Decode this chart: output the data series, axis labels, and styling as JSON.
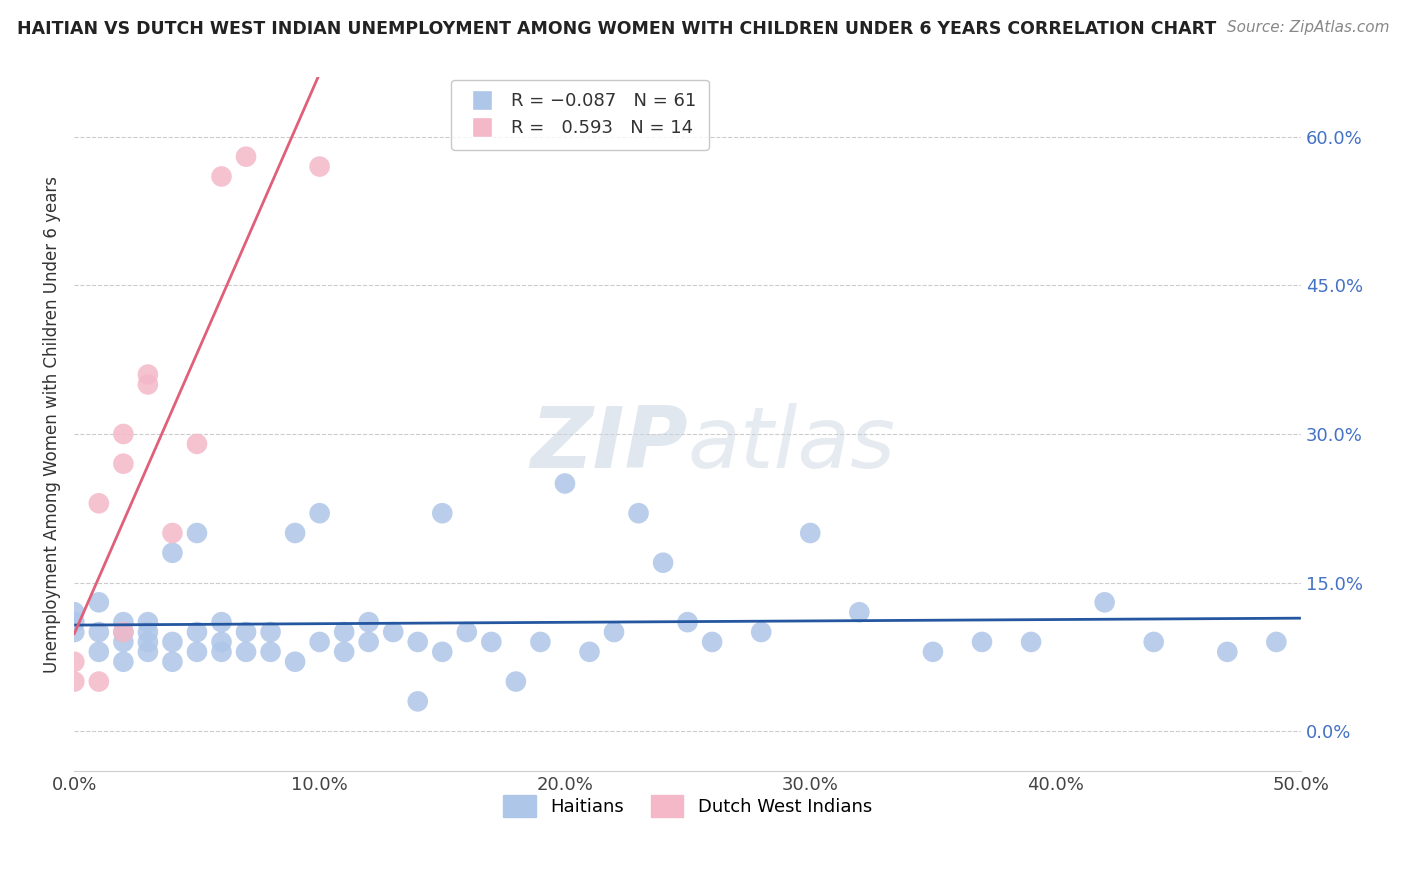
{
  "title": "HAITIAN VS DUTCH WEST INDIAN UNEMPLOYMENT AMONG WOMEN WITH CHILDREN UNDER 6 YEARS CORRELATION CHART",
  "source": "Source: ZipAtlas.com",
  "ylabel": "Unemployment Among Women with Children Under 6 years",
  "xlim": [
    0.0,
    0.5
  ],
  "ylim": [
    -0.04,
    0.66
  ],
  "xtick_labels": [
    "0.0%",
    "10.0%",
    "20.0%",
    "30.0%",
    "40.0%",
    "50.0%"
  ],
  "xtick_vals": [
    0.0,
    0.1,
    0.2,
    0.3,
    0.4,
    0.5
  ],
  "ytick_vals": [
    0.0,
    0.15,
    0.3,
    0.45,
    0.6
  ],
  "ytick_labels_right": [
    "60.0%",
    "45.0%",
    "30.0%",
    "15.0%"
  ],
  "haitian_color": "#aec6e8",
  "dutch_color": "#f4b8c8",
  "haitian_line_color": "#2457a0",
  "dutch_line_color": "#e0607a",
  "R_haitian": -0.087,
  "N_haitian": 61,
  "R_dutch": 0.593,
  "N_dutch": 14,
  "haitian_x": [
    0.0,
    0.0,
    0.0,
    0.01,
    0.01,
    0.01,
    0.02,
    0.02,
    0.02,
    0.02,
    0.03,
    0.03,
    0.03,
    0.03,
    0.04,
    0.04,
    0.04,
    0.05,
    0.05,
    0.05,
    0.06,
    0.06,
    0.06,
    0.07,
    0.07,
    0.08,
    0.08,
    0.09,
    0.09,
    0.1,
    0.1,
    0.11,
    0.11,
    0.12,
    0.12,
    0.13,
    0.14,
    0.14,
    0.15,
    0.15,
    0.16,
    0.17,
    0.18,
    0.19,
    0.2,
    0.21,
    0.22,
    0.23,
    0.24,
    0.25,
    0.26,
    0.28,
    0.3,
    0.32,
    0.35,
    0.37,
    0.39,
    0.42,
    0.44,
    0.47,
    0.49
  ],
  "haitian_y": [
    0.1,
    0.11,
    0.12,
    0.08,
    0.1,
    0.13,
    0.07,
    0.09,
    0.1,
    0.11,
    0.08,
    0.09,
    0.1,
    0.11,
    0.07,
    0.09,
    0.18,
    0.08,
    0.1,
    0.2,
    0.08,
    0.09,
    0.11,
    0.08,
    0.1,
    0.08,
    0.1,
    0.07,
    0.2,
    0.09,
    0.22,
    0.08,
    0.1,
    0.09,
    0.11,
    0.1,
    0.03,
    0.09,
    0.08,
    0.22,
    0.1,
    0.09,
    0.05,
    0.09,
    0.25,
    0.08,
    0.1,
    0.22,
    0.17,
    0.11,
    0.09,
    0.1,
    0.2,
    0.12,
    0.08,
    0.09,
    0.09,
    0.13,
    0.09,
    0.08,
    0.09
  ],
  "dutch_x": [
    0.0,
    0.0,
    0.01,
    0.01,
    0.02,
    0.02,
    0.02,
    0.03,
    0.03,
    0.04,
    0.05,
    0.06,
    0.07,
    0.1
  ],
  "dutch_y": [
    0.05,
    0.07,
    0.23,
    0.05,
    0.27,
    0.3,
    0.1,
    0.35,
    0.36,
    0.2,
    0.29,
    0.56,
    0.58,
    0.57
  ],
  "watermark_zip": "ZIP",
  "watermark_atlas": "atlas",
  "background_color": "#ffffff",
  "grid_color": "#cccccc"
}
